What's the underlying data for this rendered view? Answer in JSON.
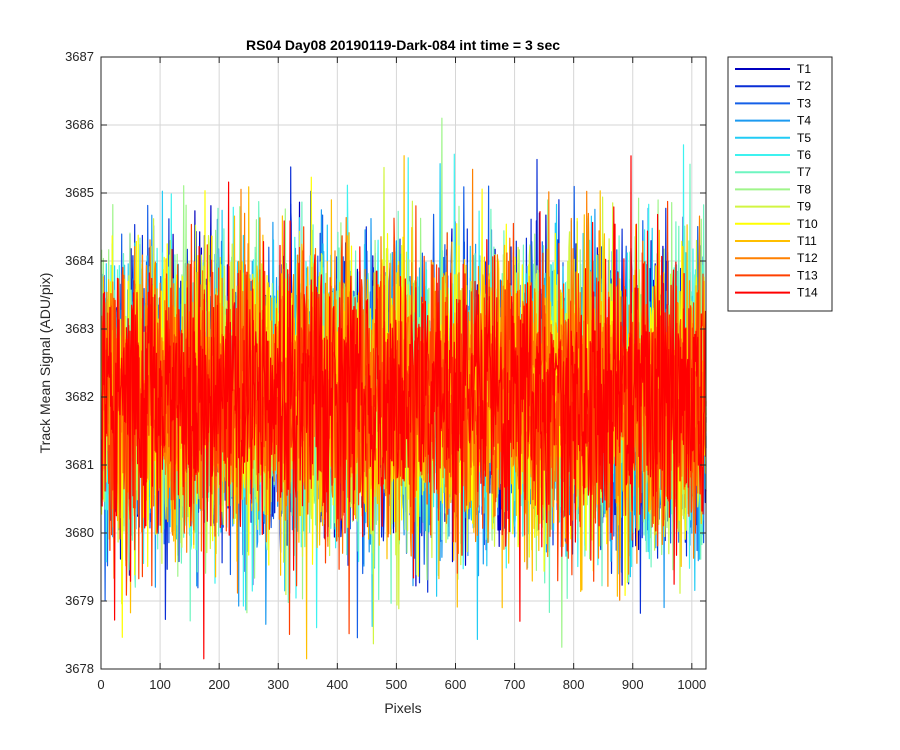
{
  "chart_data": {
    "type": "line",
    "title": "RS04 Day08 20190119-Dark-084 int time = 3 sec",
    "xlabel": "Pixels",
    "ylabel": "Track Mean Signal (ADU/pix)",
    "xlim": [
      0,
      1024
    ],
    "ylim": [
      3678,
      3687
    ],
    "xticks": [
      0,
      100,
      200,
      300,
      400,
      500,
      600,
      700,
      800,
      900,
      1000
    ],
    "yticks": [
      3678,
      3679,
      3680,
      3681,
      3682,
      3683,
      3684,
      3685,
      3686,
      3687
    ],
    "grid": true,
    "legend_position": "outside-top-right",
    "series_summary": {
      "points_per_series": 1024,
      "x_start": 1,
      "x_end": 1024,
      "mean_level": 3682,
      "typical_range": [
        3680,
        3684
      ]
    },
    "series": [
      {
        "name": "T1",
        "color": "#0000bf"
      },
      {
        "name": "T2",
        "color": "#0a2fd6"
      },
      {
        "name": "T3",
        "color": "#1560e8"
      },
      {
        "name": "T4",
        "color": "#1c9af0"
      },
      {
        "name": "T5",
        "color": "#22ccf5"
      },
      {
        "name": "T6",
        "color": "#3df2f0"
      },
      {
        "name": "T7",
        "color": "#6ff5c0"
      },
      {
        "name": "T8",
        "color": "#9ff58a"
      },
      {
        "name": "T9",
        "color": "#d2f542"
      },
      {
        "name": "T10",
        "color": "#ffff00"
      },
      {
        "name": "T11",
        "color": "#ffbf00"
      },
      {
        "name": "T12",
        "color": "#ff8000"
      },
      {
        "name": "T13",
        "color": "#ff4000"
      },
      {
        "name": "T14",
        "color": "#ff0000"
      }
    ]
  }
}
